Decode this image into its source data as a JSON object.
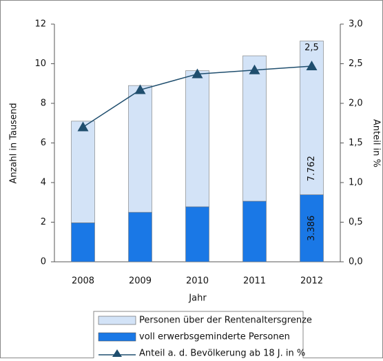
{
  "chart_data": {
    "type": "bar",
    "x_label": "Jahr",
    "y_label": "Anzahl in Tausend",
    "y2_label": "Anteil in %",
    "categories": [
      "2008",
      "2009",
      "2010",
      "2011",
      "2012"
    ],
    "series": [
      {
        "name": "voll erwerbsgeminderte Personen",
        "color": "#1a78e6",
        "values": [
          1.97,
          2.5,
          2.78,
          3.06,
          3.386
        ],
        "value_labels": [
          null,
          null,
          null,
          null,
          "3.386"
        ]
      },
      {
        "name": "Personen über der Rentenaltersgrenze",
        "color": "#d3e3f7",
        "values": [
          5.13,
          6.4,
          6.87,
          7.34,
          7.762
        ],
        "value_labels": [
          null,
          null,
          null,
          null,
          "7.762"
        ]
      },
      {
        "name": "Anteil a. d. Bevölkerung ab 18 J. in %",
        "type": "line",
        "axis": "y2",
        "color": "#1f4e6e",
        "values": [
          1.7,
          2.17,
          2.37,
          2.42,
          2.47
        ],
        "value_labels": [
          null,
          null,
          null,
          null,
          "2,5"
        ]
      }
    ],
    "stacked": true,
    "ylim": [
      0,
      12
    ],
    "yticks": [
      0,
      2,
      4,
      6,
      8,
      10,
      12
    ],
    "y2lim": [
      0,
      3
    ],
    "y2ticks": [
      {
        "value": 0,
        "label": "0,0"
      },
      {
        "value": 0.5,
        "label": "0,5"
      },
      {
        "value": 1,
        "label": "1,0"
      },
      {
        "value": 1.5,
        "label": "1,5"
      },
      {
        "value": 2,
        "label": "2,0"
      },
      {
        "value": 2.5,
        "label": "2,5"
      },
      {
        "value": 3,
        "label": "3,0"
      }
    ],
    "grid": false
  }
}
